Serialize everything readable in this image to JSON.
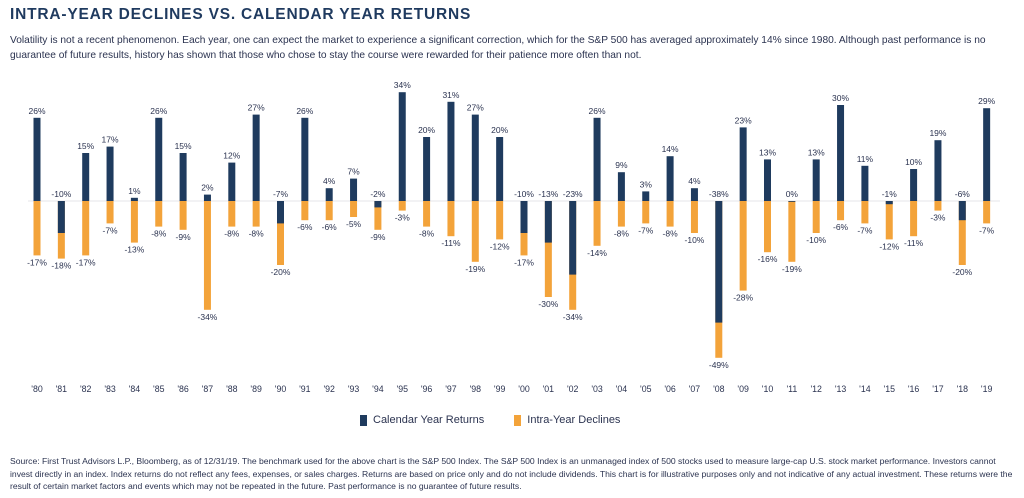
{
  "header": {
    "title": "INTRA-YEAR DECLINES VS. CALENDAR YEAR RETURNS",
    "subtitle": "Volatility is not a recent phenomenon. Each year, one can expect the market to experience a significant correction, which for the S&P 500 has averaged approximately 14% since 1980. Although past performance is no guarantee of future results, history has shown that those who chose to stay the course were rewarded for their patience more often than not."
  },
  "chart_data": {
    "type": "bar",
    "categories": [
      "'80",
      "'81",
      "'82",
      "'83",
      "'84",
      "'85",
      "'86",
      "'87",
      "'88",
      "'89",
      "'90",
      "'91",
      "'92",
      "'93",
      "'94",
      "'95",
      "'96",
      "'97",
      "'98",
      "'99",
      "'00",
      "'01",
      "'02",
      "'03",
      "'04",
      "'05",
      "'06",
      "'07",
      "'08",
      "'09",
      "'10",
      "'11",
      "'12",
      "'13",
      "'14",
      "'15",
      "'16",
      "'17",
      "'18",
      "'19"
    ],
    "series": [
      {
        "name": "Calendar Year Returns",
        "color": "#1f3b5e",
        "values": [
          26,
          -10,
          15,
          17,
          1,
          26,
          15,
          2,
          12,
          27,
          -7,
          26,
          4,
          7,
          -2,
          34,
          20,
          31,
          27,
          20,
          -10,
          -13,
          -23,
          26,
          9,
          3,
          14,
          4,
          -38,
          23,
          13,
          0,
          13,
          30,
          11,
          -1,
          10,
          19,
          -6,
          29
        ]
      },
      {
        "name": "Intra-Year Declines",
        "color": "#f3a33a",
        "values": [
          -17,
          -18,
          -17,
          -7,
          -13,
          -8,
          -9,
          -34,
          -8,
          -8,
          -20,
          -6,
          -6,
          -5,
          -9,
          -3,
          -8,
          -11,
          -19,
          -12,
          -17,
          -30,
          -34,
          -14,
          -8,
          -7,
          -8,
          -10,
          -49,
          -28,
          -16,
          -19,
          -10,
          -6,
          -7,
          -12,
          -11,
          -3,
          -20,
          -7
        ]
      }
    ],
    "ylim": [
      -50,
      36
    ],
    "value_suffix": "%",
    "legend_position": "bottom-center"
  },
  "legend": {
    "returns_label": "Calendar Year Returns",
    "declines_label": "Intra-Year Declines"
  },
  "footer": {
    "source": "Source: First Trust Advisors L.P., Bloomberg, as of 12/31/19. The benchmark used for the above chart is the S&P 500 Index. The S&P 500 Index is an unmanaged index of 500 stocks used to measure large-cap U.S. stock market performance.  Investors cannot invest directly in an index. Index returns do not reflect any fees, expenses, or sales charges. Returns are based on price only and do not include dividends. This chart is for illustrative purposes only and not indicative of any actual investment. These returns were the result of certain market factors and events which may not be repeated in the future.  Past performance is no guarantee of future results."
  }
}
